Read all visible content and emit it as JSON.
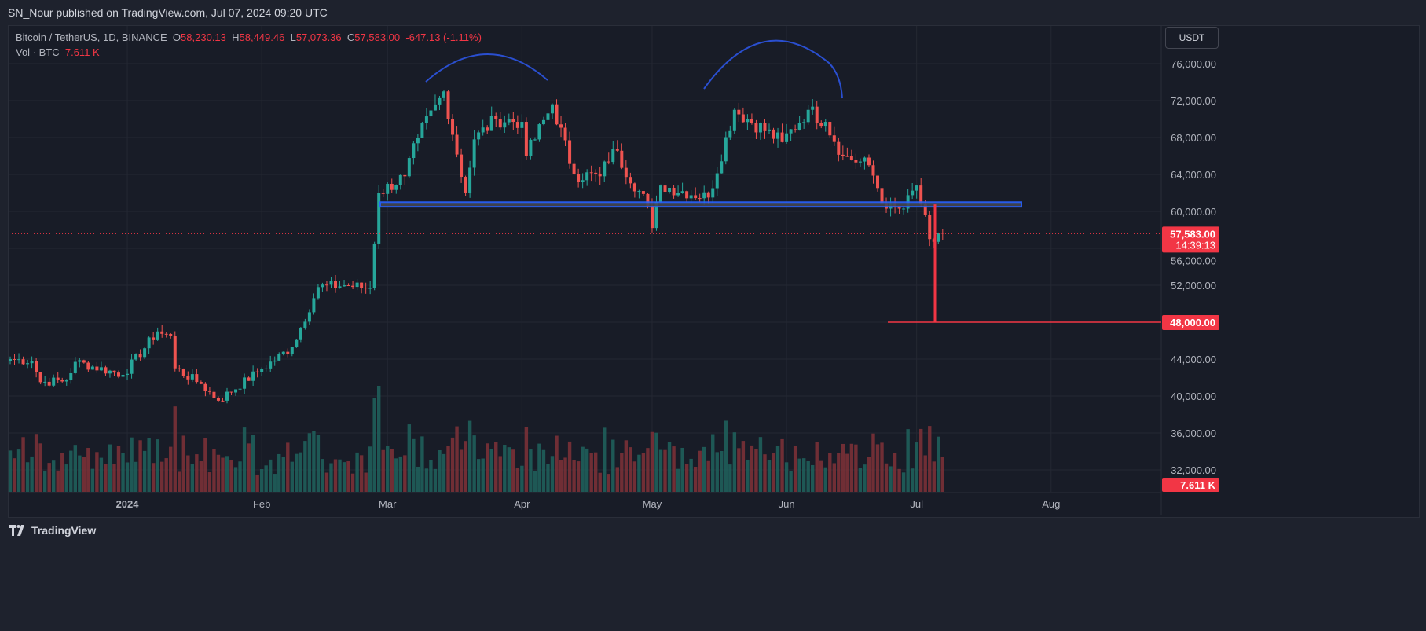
{
  "publish_line": "SN_Nour published on TradingView.com, Jul 07, 2024 09:20 UTC",
  "legend": {
    "symbol": "Bitcoin / TetherUS, 1D, BINANCE",
    "o_label": "O",
    "o": "58,230.13",
    "h_label": "H",
    "h": "58,449.46",
    "l_label": "L",
    "l": "57,073.36",
    "c_label": "C",
    "c": "57,583.00",
    "change": "-647.13 (-1.11%)",
    "vol_label": "Vol · BTC",
    "vol": "7.611 K"
  },
  "currency_button": "USDT",
  "last_price": {
    "price": "57,583.00",
    "countdown": "14:39:13"
  },
  "target_label": "48,000.00",
  "volume_label": "7.611 K",
  "footer_brand": "TradingView",
  "colors": {
    "up": "#26a69a",
    "down": "#ef5350",
    "accent": "#f23645",
    "drawing": "#2962ff"
  },
  "chart_data": {
    "type": "candlestick",
    "y_ticks": [
      "76,000.00",
      "72,000.00",
      "68,000.00",
      "64,000.00",
      "60,000.00",
      "56,000.00",
      "52,000.00",
      "48,000.00",
      "44,000.00",
      "40,000.00",
      "36,000.00",
      "32,000.00"
    ],
    "y_tick_values": [
      76000,
      72000,
      68000,
      64000,
      60000,
      56000,
      52000,
      48000,
      44000,
      40000,
      36000,
      32000
    ],
    "x_ticks": [
      {
        "label": "2024",
        "day": 27
      },
      {
        "label": "Feb",
        "day": 58
      },
      {
        "label": "Mar",
        "day": 87
      },
      {
        "label": "Apr",
        "day": 118
      },
      {
        "label": "May",
        "day": 148
      },
      {
        "label": "Jun",
        "day": 179
      },
      {
        "label": "Jul",
        "day": 209
      },
      {
        "label": "Aug",
        "day": 240
      }
    ],
    "start_date": "2023-12-05",
    "close_waypoints": [
      [
        0,
        44000
      ],
      [
        5,
        43800
      ],
      [
        7,
        41500
      ],
      [
        13,
        41700
      ],
      [
        15,
        43700
      ],
      [
        26,
        42300
      ],
      [
        34,
        47000
      ],
      [
        37,
        46500
      ],
      [
        38,
        43000
      ],
      [
        44,
        41300
      ],
      [
        48,
        39500
      ],
      [
        57,
        42600
      ],
      [
        65,
        45300
      ],
      [
        71,
        51800
      ],
      [
        77,
        52000
      ],
      [
        83,
        51700
      ],
      [
        85,
        62000
      ],
      [
        91,
        63800
      ],
      [
        94,
        68000
      ],
      [
        100,
        73000
      ],
      [
        105,
        62000
      ],
      [
        107,
        67800
      ],
      [
        112,
        70000
      ],
      [
        118,
        69700
      ],
      [
        119,
        66000
      ],
      [
        125,
        71600
      ],
      [
        130,
        64000
      ],
      [
        136,
        63800
      ],
      [
        139,
        66800
      ],
      [
        147,
        60600
      ],
      [
        148,
        58200
      ],
      [
        150,
        62800
      ],
      [
        161,
        61500
      ],
      [
        167,
        71000
      ],
      [
        178,
        67500
      ],
      [
        184,
        71000
      ],
      [
        188,
        69700
      ],
      [
        192,
        66000
      ],
      [
        198,
        65000
      ],
      [
        202,
        60300
      ],
      [
        206,
        60300
      ],
      [
        209,
        62800
      ],
      [
        212,
        57000
      ],
      [
        213,
        56700
      ],
      [
        215,
        57583
      ]
    ],
    "support_zone": [
      60500,
      61000
    ],
    "target_price": 48000,
    "price_range": [
      30000,
      78000
    ]
  }
}
